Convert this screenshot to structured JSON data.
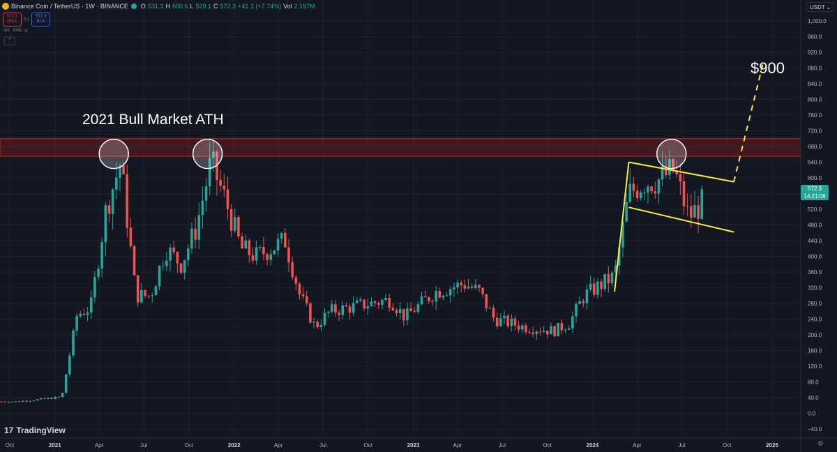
{
  "header": {
    "symbol": "Binance Coin / TetherUS · 1W · BINANCE",
    "open_label": "O",
    "open": "531.3",
    "high_label": "H",
    "high": "600.6",
    "low_label": "L",
    "low": "529.1",
    "close_label": "C",
    "close": "572.3",
    "change": "+41.1 (+7.74%)",
    "vol_label": "Vol",
    "vol": "2.197M"
  },
  "trade": {
    "sell_price": "572.2",
    "sell_label": "SELL",
    "spread": "0.1",
    "buy_price": "572.3",
    "buy_label": "BUY"
  },
  "volume_row": {
    "label": "Vol · BNB"
  },
  "currency": {
    "label": "USDT"
  },
  "last_price": {
    "price": "572.3",
    "countdown": "14:21:08"
  },
  "brand": {
    "name": "TradingView"
  },
  "colors": {
    "background": "#131722",
    "up": "#26a69a",
    "down": "#ef5350",
    "annotation": "#ffeb3b",
    "zone": "#b71c1c"
  },
  "chart_data": {
    "type": "candlestick",
    "title": "",
    "annotations": [
      {
        "text": "2021 Bull Market ATH"
      },
      {
        "text": "$900"
      }
    ],
    "resistance_zone": [
      655,
      700
    ],
    "ylim": [
      -60,
      1040
    ],
    "y_ticks": [
      "1,000.0",
      "960.0",
      "920.0",
      "880.0",
      "840.0",
      "800.0",
      "760.0",
      "720.0",
      "680.0",
      "640.0",
      "600.0",
      "560.0",
      "520.0",
      "480.0",
      "440.0",
      "400.0",
      "360.0",
      "320.0",
      "280.0",
      "240.0",
      "200.0",
      "160.0",
      "120.0",
      "80.0",
      "40.0",
      "0.0",
      "−40.0"
    ],
    "x_ticks": [
      "Oct",
      "2021",
      "Apr",
      "Jul",
      "Oct",
      "2022",
      "Apr",
      "Jul",
      "Oct",
      "2023",
      "Apr",
      "Jul",
      "Oct",
      "2024",
      "Apr",
      "Jul",
      "Oct",
      "2025"
    ],
    "price_path": [
      {
        "date": "2020-10",
        "close": 30
      },
      {
        "date": "2020-12",
        "close": 37
      },
      {
        "date": "2021-01",
        "close": 42
      },
      {
        "date": "2021-02",
        "close": 250
      },
      {
        "date": "2021-03",
        "close": 270
      },
      {
        "date": "2021-04",
        "close": 520
      },
      {
        "date": "2021-05",
        "close": 640
      },
      {
        "date": "2021-06",
        "close": 300
      },
      {
        "date": "2021-07",
        "close": 300
      },
      {
        "date": "2021-08",
        "close": 420
      },
      {
        "date": "2021-09",
        "close": 380
      },
      {
        "date": "2021-10",
        "close": 470
      },
      {
        "date": "2021-11",
        "close": 640
      },
      {
        "date": "2021-12",
        "close": 540
      },
      {
        "date": "2022-01",
        "close": 420
      },
      {
        "date": "2022-02",
        "close": 400
      },
      {
        "date": "2022-04",
        "close": 440
      },
      {
        "date": "2022-05",
        "close": 300
      },
      {
        "date": "2022-06",
        "close": 220
      },
      {
        "date": "2022-07",
        "close": 260
      },
      {
        "date": "2022-09",
        "close": 275
      },
      {
        "date": "2022-11",
        "close": 290
      },
      {
        "date": "2022-12",
        "close": 245
      },
      {
        "date": "2023-02",
        "close": 310
      },
      {
        "date": "2023-04",
        "close": 330
      },
      {
        "date": "2023-05",
        "close": 310
      },
      {
        "date": "2023-06",
        "close": 240
      },
      {
        "date": "2023-08",
        "close": 220
      },
      {
        "date": "2023-10",
        "close": 210
      },
      {
        "date": "2023-11",
        "close": 230
      },
      {
        "date": "2023-12",
        "close": 300
      },
      {
        "date": "2024-02",
        "close": 350
      },
      {
        "date": "2024-03",
        "close": 560
      },
      {
        "date": "2024-04",
        "close": 590
      },
      {
        "date": "2024-05",
        "close": 595
      },
      {
        "date": "2024-06",
        "close": 620
      },
      {
        "date": "2024-07",
        "close": 500
      },
      {
        "date": "2024-08",
        "close": 540
      },
      {
        "date": "2024-09",
        "close": 572.3
      }
    ],
    "flag_upper": [
      {
        "date": "2024-03",
        "y": 640
      },
      {
        "date": "2024-10",
        "y": 590
      }
    ],
    "flag_lower": [
      {
        "date": "2024-03",
        "y": 525
      },
      {
        "date": "2024-10",
        "y": 462
      }
    ],
    "flagpole": [
      {
        "date": "2024-02",
        "y": 310
      },
      {
        "date": "2024-03",
        "y": 640
      }
    ],
    "projection": [
      {
        "date": "2024-10",
        "y": 590
      },
      {
        "date": "2024-12",
        "y": 900
      }
    ]
  }
}
